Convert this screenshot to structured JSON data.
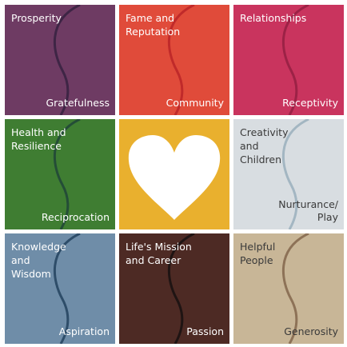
{
  "tiles": [
    {
      "title": "Prosperity",
      "keyword": "Gratefulness",
      "color": "#6e3b63",
      "curve": "#3e2545"
    },
    {
      "title": "Fame and\nReputation",
      "keyword": "Community",
      "color": "#e04b3a",
      "curve": "#c02a2a"
    },
    {
      "title": "Relationships",
      "keyword": "Receptivity",
      "color": "#c9345e",
      "curve": "#9c2246"
    },
    {
      "title": "Health and\nResilience",
      "keyword": "Reciprocation",
      "color": "#3f7d32",
      "curve": "#244d37"
    },
    {
      "title": "",
      "keyword": "",
      "color": "#e9b02e",
      "icon": "heart-icon",
      "icon_color": "#ffffff"
    },
    {
      "title": "Creativity\nand\nChildren",
      "keyword": "Nurturance/\nPlay",
      "color": "#d8dde1",
      "curve": "#a3b6c2",
      "text_color": "#3a3a3a"
    },
    {
      "title": "Knowledge\nand\nWisdom",
      "keyword": "Aspiration",
      "color": "#6f8da8",
      "curve": "#2e4d69"
    },
    {
      "title": "Life's Mission\nand Career",
      "keyword": "Passion",
      "color": "#4d2a24",
      "curve": "#1f1413"
    },
    {
      "title": "Helpful\nPeople",
      "keyword": "Generosity",
      "color": "#c8b697",
      "curve": "#8d7257",
      "text_color": "#3a3a3a"
    }
  ]
}
